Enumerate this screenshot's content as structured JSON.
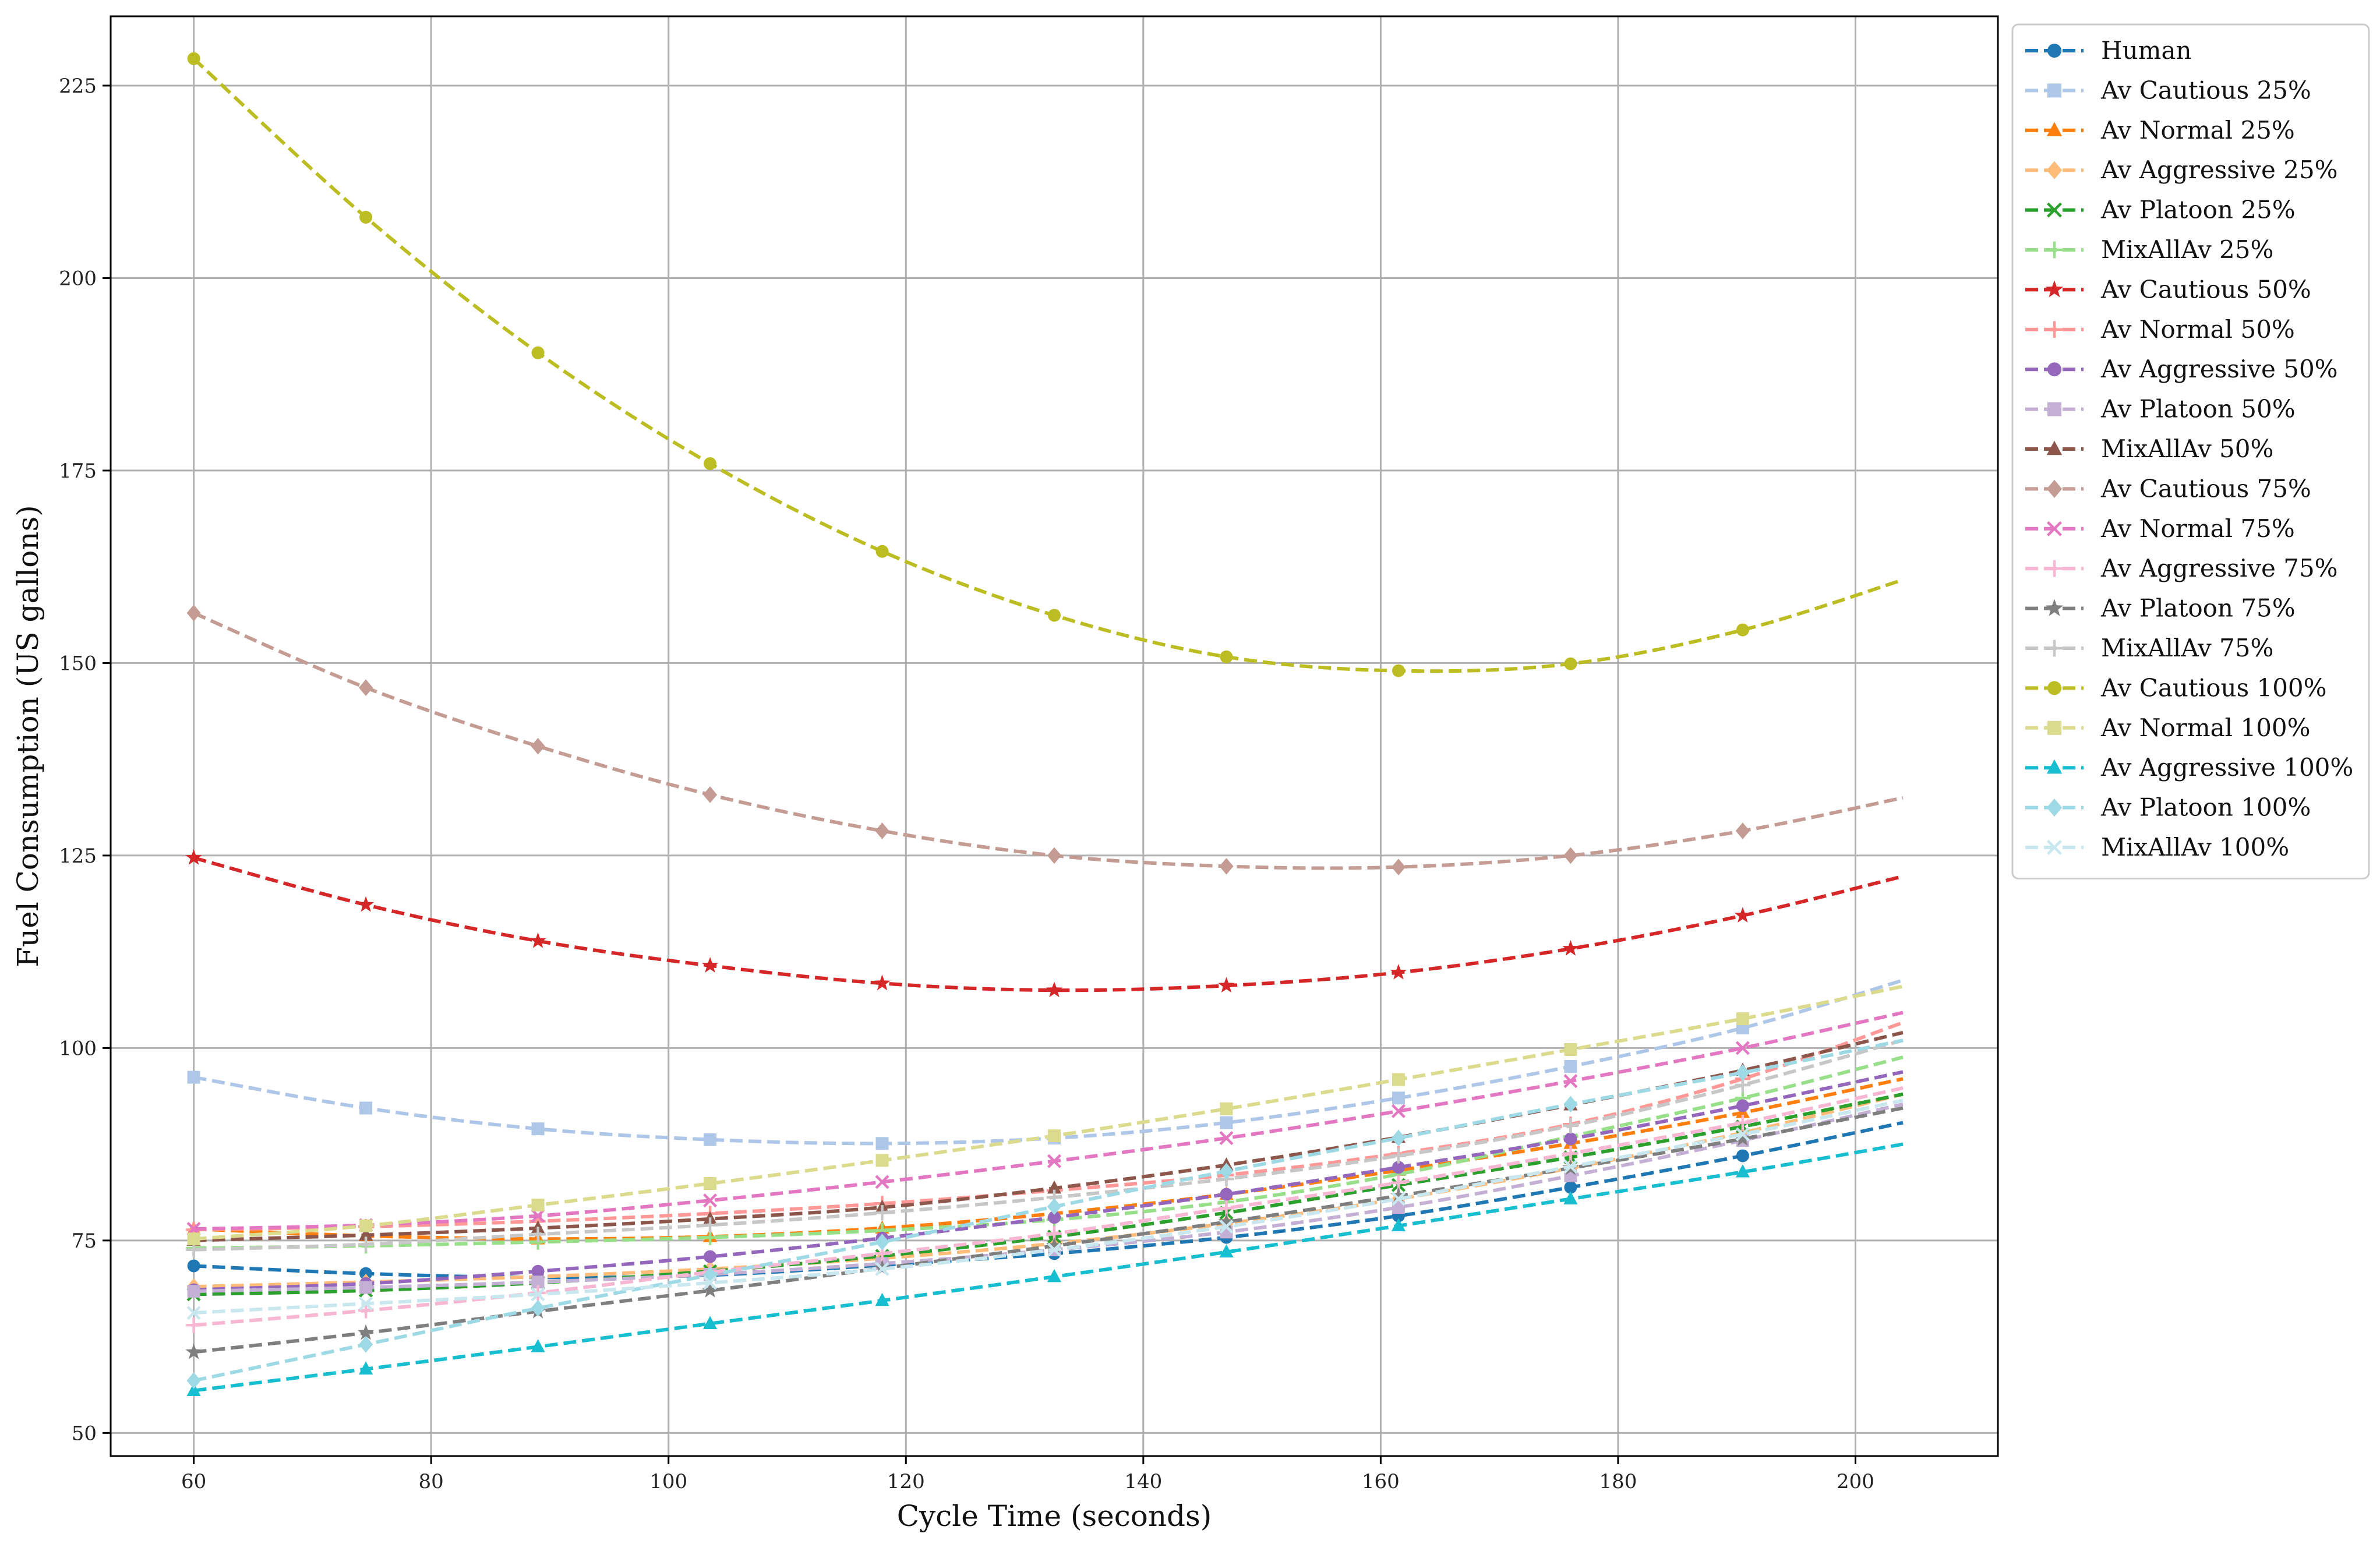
{
  "chart_data": {
    "type": "line",
    "title": "",
    "xlabel": "Cycle Time (seconds)",
    "ylabel": "Fuel Consumption (US gallons)",
    "xlim": [
      53,
      212
    ],
    "ylim": [
      47,
      234
    ],
    "xticks": [
      60,
      80,
      100,
      120,
      140,
      160,
      180,
      200
    ],
    "yticks": [
      50,
      75,
      100,
      125,
      150,
      175,
      200,
      225
    ],
    "grid": true,
    "legend_position": "outside-right-top",
    "x": [
      60,
      74.5,
      89,
      103.5,
      118,
      132.5,
      147,
      161.5,
      176,
      190.5,
      204
    ],
    "series": [
      {
        "name": "Human",
        "color": "#1f77b4",
        "marker": "circle",
        "values": [
          71.7,
          70.7,
          70.2,
          70.5,
          71.8,
          73.3,
          75.4,
          78.2,
          81.9,
          86.0,
          90.3
        ]
      },
      {
        "name": "Av Cautious 25%",
        "color": "#aec7e8",
        "marker": "square",
        "values": [
          96.2,
          92.2,
          89.5,
          88.1,
          87.6,
          88.3,
          90.3,
          93.5,
          97.6,
          102.6,
          108.8
        ]
      },
      {
        "name": "Av Normal 25%",
        "color": "#ff7f0e",
        "marker": "triangle",
        "values": [
          76.5,
          75.6,
          75.2,
          75.5,
          76.6,
          78.5,
          81.0,
          84.1,
          87.6,
          91.6,
          96.0
        ]
      },
      {
        "name": "Av Aggressive 25%",
        "color": "#ffbb78",
        "marker": "diamond",
        "values": [
          69.0,
          69.6,
          70.3,
          71.3,
          72.7,
          74.6,
          77.2,
          80.4,
          84.4,
          89.0,
          94.0
        ]
      },
      {
        "name": "Av Platoon 25%",
        "color": "#2ca02c",
        "marker": "x",
        "values": [
          68.0,
          68.5,
          69.5,
          71.0,
          73.0,
          75.5,
          78.6,
          82.2,
          85.8,
          89.8,
          94.0
        ]
      },
      {
        "name": "MixAllAv 25%",
        "color": "#98df8a",
        "marker": "plus",
        "values": [
          74.0,
          74.3,
          74.8,
          75.4,
          76.3,
          77.7,
          80.0,
          83.6,
          88.5,
          93.5,
          98.8
        ]
      },
      {
        "name": "Av Cautious 50%",
        "color": "#d62728",
        "marker": "star",
        "values": [
          124.7,
          118.6,
          113.9,
          110.7,
          108.4,
          107.5,
          108.1,
          109.8,
          112.9,
          117.2,
          122.3
        ]
      },
      {
        "name": "Av Normal 50%",
        "color": "#ff9896",
        "marker": "plus",
        "values": [
          76.4,
          76.8,
          77.5,
          78.5,
          79.8,
          81.5,
          83.5,
          86.3,
          90.1,
          96.0,
          103.3
        ]
      },
      {
        "name": "Av Aggressive 50%",
        "color": "#9467bd",
        "marker": "circle",
        "values": [
          68.6,
          69.4,
          71.0,
          72.9,
          75.3,
          78.0,
          81.0,
          84.5,
          88.2,
          92.5,
          96.9
        ]
      },
      {
        "name": "Av Platoon 50%",
        "color": "#c5b0d5",
        "marker": "square",
        "values": [
          68.4,
          68.9,
          69.6,
          70.6,
          72.0,
          73.8,
          76.1,
          79.3,
          83.4,
          88.0,
          92.7
        ]
      },
      {
        "name": "MixAllAv 50%",
        "color": "#8c564b",
        "marker": "triangle",
        "values": [
          75.0,
          75.7,
          76.6,
          77.8,
          79.3,
          81.8,
          84.8,
          88.4,
          92.6,
          97.1,
          102.0
        ]
      },
      {
        "name": "Av Cautious 75%",
        "color": "#c49c94",
        "marker": "diamond",
        "values": [
          156.5,
          146.8,
          139.2,
          132.9,
          128.2,
          125.0,
          123.6,
          123.5,
          125.0,
          128.2,
          132.5
        ]
      },
      {
        "name": "Av Normal 75%",
        "color": "#e377c2",
        "marker": "x",
        "values": [
          76.5,
          77.0,
          78.2,
          80.2,
          82.6,
          85.3,
          88.3,
          91.8,
          95.7,
          100.0,
          104.6
        ]
      },
      {
        "name": "Av Aggressive 75%",
        "color": "#f7b6d2",
        "marker": "plus",
        "values": [
          64.0,
          65.9,
          68.2,
          70.9,
          73.3,
          75.9,
          79.2,
          82.5,
          86.3,
          90.3,
          94.8
        ]
      },
      {
        "name": "Av Platoon 75%",
        "color": "#7f7f7f",
        "marker": "star",
        "values": [
          60.5,
          63.0,
          65.8,
          68.5,
          71.4,
          74.3,
          77.4,
          80.8,
          84.4,
          88.2,
          92.2
        ]
      },
      {
        "name": "MixAllAv 75%",
        "color": "#c7c7c7",
        "marker": "plus",
        "values": [
          73.8,
          74.5,
          75.8,
          77.0,
          78.6,
          80.6,
          83.0,
          86.0,
          89.9,
          95.2,
          101.0
        ]
      },
      {
        "name": "Av Cautious 100%",
        "color": "#bcbd22",
        "marker": "circle",
        "values": [
          228.5,
          207.9,
          190.3,
          175.9,
          164.5,
          156.2,
          150.8,
          149.0,
          149.9,
          154.3,
          160.8
        ]
      },
      {
        "name": "Av Normal 100%",
        "color": "#dbdb8d",
        "marker": "square",
        "values": [
          75.2,
          76.9,
          79.6,
          82.4,
          85.4,
          88.6,
          92.1,
          95.9,
          99.8,
          103.8,
          108.0
        ]
      },
      {
        "name": "Av Aggressive 100%",
        "color": "#17becf",
        "marker": "triangle",
        "values": [
          55.5,
          58.3,
          61.2,
          64.2,
          67.2,
          70.3,
          73.5,
          76.9,
          80.4,
          83.9,
          87.5
        ]
      },
      {
        "name": "Av Platoon 100%",
        "color": "#9edae5",
        "marker": "diamond",
        "values": [
          56.8,
          61.5,
          66.2,
          70.5,
          74.8,
          79.4,
          84.0,
          88.3,
          92.7,
          96.8,
          101.0
        ]
      },
      {
        "name": "MixAllAv 100%",
        "color": "#c8e7ee",
        "marker": "x",
        "values": [
          65.6,
          66.8,
          68.0,
          69.5,
          71.3,
          73.8,
          76.8,
          80.4,
          84.6,
          88.8,
          93.2
        ]
      }
    ]
  }
}
